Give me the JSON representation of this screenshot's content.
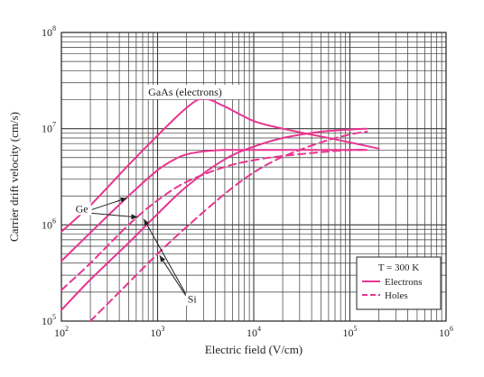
{
  "chart_data": {
    "type": "line",
    "title": "",
    "xlabel": "Electric field (V/cm)",
    "ylabel": "Carrier drift velocity (cm/s)",
    "xscale": "log",
    "yscale": "log",
    "xlim": [
      100,
      1000000
    ],
    "ylim": [
      100000,
      100000000
    ],
    "x_ticks": [
      {
        "base": "10",
        "exp": "2",
        "value": 100
      },
      {
        "base": "10",
        "exp": "3",
        "value": 1000
      },
      {
        "base": "10",
        "exp": "4",
        "value": 10000
      },
      {
        "base": "10",
        "exp": "5",
        "value": 100000
      },
      {
        "base": "10",
        "exp": "6",
        "value": 1000000
      }
    ],
    "y_ticks": [
      {
        "base": "10",
        "exp": "5",
        "value": 100000
      },
      {
        "base": "10",
        "exp": "6",
        "value": 1000000
      },
      {
        "base": "10",
        "exp": "7",
        "value": 10000000
      },
      {
        "base": "10",
        "exp": "8",
        "value": 100000000
      }
    ],
    "grid": true,
    "color": "#e8358f",
    "series": [
      {
        "key": "gaas-electrons",
        "style": "solid",
        "x": [
          100,
          200,
          500,
          1000,
          2000,
          3000,
          5000,
          10000,
          20000,
          50000,
          100000,
          200000
        ],
        "y": [
          850000,
          1600000,
          4200000,
          8500000,
          16500000,
          20500000,
          17000000,
          12000000,
          10000000,
          8300000,
          7200000,
          6200000
        ]
      },
      {
        "key": "ge-electrons",
        "style": "solid",
        "x": [
          100,
          200,
          500,
          1000,
          1500,
          2000,
          3000,
          5000,
          10000,
          30000,
          100000,
          150000
        ],
        "y": [
          420000,
          830000,
          2000000,
          3700000,
          4800000,
          5400000,
          5800000,
          6000000,
          6000000,
          6000000,
          6000000,
          6000000
        ]
      },
      {
        "key": "ge-holes",
        "style": "dashed",
        "x": [
          100,
          200,
          500,
          1000,
          2000,
          5000,
          10000,
          20000,
          50000,
          100000,
          150000
        ],
        "y": [
          210000,
          400000,
          1000000,
          1800000,
          2800000,
          4000000,
          4700000,
          5200000,
          5700000,
          6000000,
          6000000
        ]
      },
      {
        "key": "si-electrons",
        "style": "solid",
        "x": [
          100,
          200,
          500,
          1000,
          2000,
          5000,
          10000,
          20000,
          50000,
          100000,
          150000
        ],
        "y": [
          130000,
          270000,
          650000,
          1300000,
          2500000,
          4800000,
          6500000,
          8000000,
          9300000,
          9800000,
          10000000
        ]
      },
      {
        "key": "si-holes",
        "style": "dashed",
        "x": [
          200,
          500,
          1000,
          2000,
          5000,
          10000,
          20000,
          50000,
          100000,
          150000
        ],
        "y": [
          100000,
          250000,
          500000,
          950000,
          2100000,
          3500000,
          5100000,
          7200000,
          8700000,
          9300000
        ]
      }
    ],
    "annotations": [
      {
        "key": "gaas",
        "text": "GaAs (electrons)",
        "x": 800,
        "y": 22000000
      },
      {
        "key": "ge",
        "text": "Ge",
        "x": 140,
        "y": 1350000
      },
      {
        "key": "si",
        "text": "Si",
        "x": 2050,
        "y": 155000
      }
    ],
    "legend": {
      "placement": "bottom-right",
      "title": "T = 300 K",
      "entries": [
        {
          "label": "Electrons",
          "style": "solid"
        },
        {
          "label": "Holes",
          "style": "dashed"
        }
      ]
    }
  }
}
